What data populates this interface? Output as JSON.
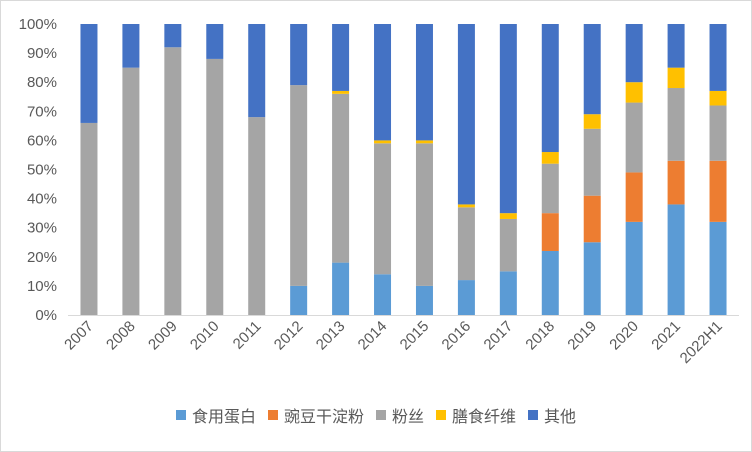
{
  "chart_data": {
    "type": "bar",
    "stacked": true,
    "categories": [
      "2007",
      "2008",
      "2009",
      "2010",
      "2011",
      "2012",
      "2013",
      "2014",
      "2015",
      "2016",
      "2017",
      "2018",
      "2019",
      "2020",
      "2021",
      "2022H1"
    ],
    "series": [
      {
        "name": "食用蛋白",
        "color": "#5b9bd5",
        "values": [
          0,
          0,
          0,
          0,
          0,
          10,
          18,
          14,
          10,
          12,
          15,
          22,
          25,
          32,
          38,
          32
        ]
      },
      {
        "name": "豌豆干淀粉",
        "color": "#ed7d31",
        "values": [
          0,
          0,
          0,
          0,
          0,
          0,
          0,
          0,
          0,
          0,
          0,
          13,
          16,
          17,
          15,
          21
        ]
      },
      {
        "name": "粉丝",
        "color": "#a5a5a5",
        "values": [
          66,
          85,
          92,
          88,
          68,
          69,
          58,
          45,
          49,
          25,
          18,
          17,
          23,
          24,
          25,
          19
        ]
      },
      {
        "name": "膳食纤维",
        "color": "#ffc000",
        "values": [
          0,
          0,
          0,
          0,
          0,
          0,
          1,
          1,
          1,
          1,
          2,
          4,
          5,
          7,
          7,
          5
        ]
      },
      {
        "name": "其他",
        "color": "#4472c4",
        "values": [
          34,
          15,
          8,
          12,
          32,
          21,
          23,
          40,
          40,
          62,
          65,
          44,
          31,
          20,
          15,
          23
        ]
      }
    ],
    "y_ticks": [
      "0%",
      "10%",
      "20%",
      "30%",
      "40%",
      "50%",
      "60%",
      "70%",
      "80%",
      "90%",
      "100%"
    ],
    "ylim": [
      0,
      100
    ],
    "grid": false,
    "legend_position": "bottom",
    "axis_color": "#d9d9d9",
    "text_color": "#595959"
  }
}
